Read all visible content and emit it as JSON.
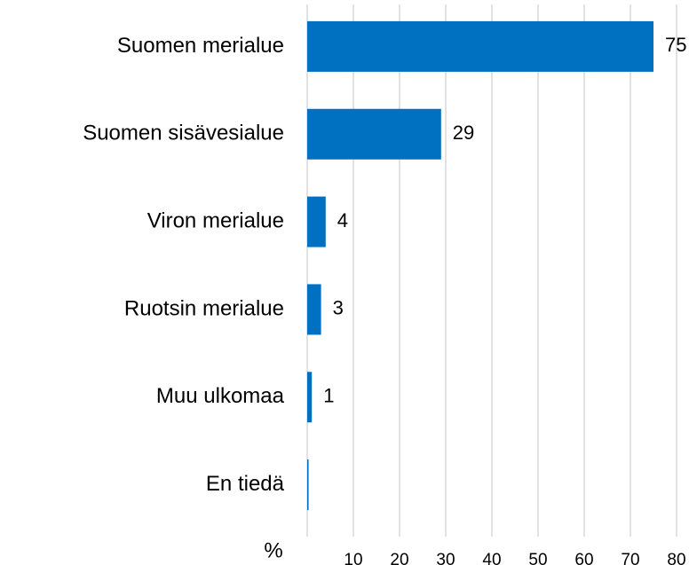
{
  "chart_data": {
    "type": "bar",
    "orientation": "horizontal",
    "categories": [
      "Suomen merialue",
      "Suomen sisävesialue",
      "Viron merialue",
      "Ruotsin merialue",
      "Muu ulkomaa",
      "En tiedä"
    ],
    "values": [
      75,
      29,
      4,
      3,
      1,
      0.3
    ],
    "value_labels": [
      "75",
      "29",
      "4",
      "3",
      "1",
      null
    ],
    "color": "#0070c0",
    "xlabel": "%",
    "xlim": [
      0,
      80
    ],
    "xticks": [
      10,
      20,
      30,
      40,
      50,
      60,
      70,
      80
    ],
    "grid": true
  }
}
